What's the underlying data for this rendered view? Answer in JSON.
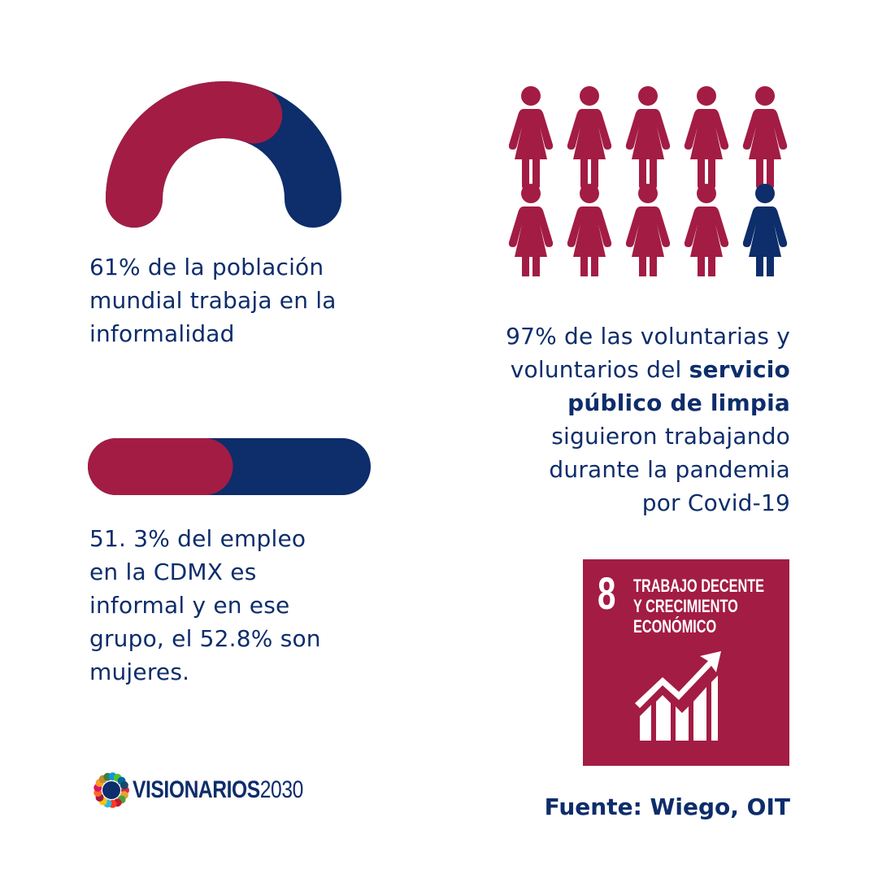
{
  "colors": {
    "crimson": "#a31c44",
    "navy": "#0d2d6b"
  },
  "stat_arc": {
    "value_percent": 61,
    "text_lines": [
      "61% de la población",
      "mundial trabaja en la",
      "informalidad"
    ]
  },
  "stat_bar": {
    "value_percent": 51.3,
    "text_lines": [
      "51. 3% del empleo",
      "en la CDMX es",
      "informal y en ese",
      "grupo, el 52.8% son",
      "mujeres."
    ]
  },
  "pictogram": {
    "total": 10,
    "highlighted": 9
  },
  "stat_volunteers": {
    "line1": "97% de las voluntarias y",
    "line2_pre": "voluntarios del ",
    "line2_bold": "servicio",
    "line3_bold": "público de limpia",
    "line4": "siguieron trabajando",
    "line5": "durante la pandemia",
    "line6": "por Covid-19"
  },
  "sdg": {
    "number": "8",
    "title_lines": [
      "TRABAJO DECENTE",
      "Y CRECIMIENTO",
      "ECONÓMICO"
    ],
    "icon": "growth-chart-icon"
  },
  "logo": {
    "name": "VISIONARIOS",
    "year": "2030",
    "icon": "sdg-wheel-icon"
  },
  "source": "Fuente: Wiego, OIT"
}
